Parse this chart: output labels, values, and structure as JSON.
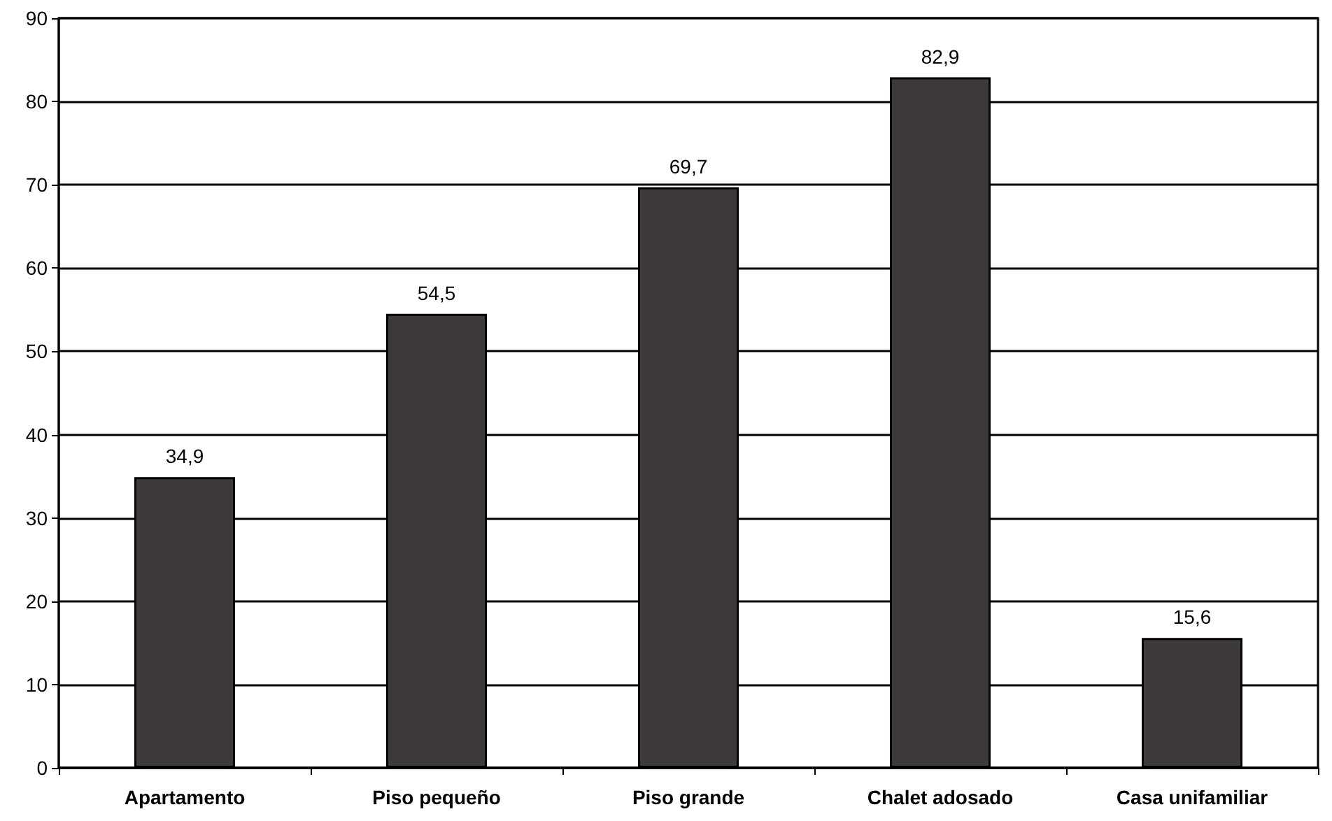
{
  "chart_data": {
    "type": "bar",
    "categories": [
      "Apartamento",
      "Piso pequeño",
      "Piso grande",
      "Chalet adosado",
      "Casa unifamiliar"
    ],
    "values": [
      34.9,
      54.5,
      69.7,
      82.9,
      15.6
    ],
    "value_labels": [
      "34,9",
      "54,5",
      "69,7",
      "82,9",
      "15,6"
    ],
    "color": "#3e3a39",
    "ylim": [
      0,
      90
    ],
    "yticks": [
      0,
      10,
      20,
      30,
      40,
      50,
      60,
      70,
      80,
      90
    ],
    "grid": "y"
  }
}
